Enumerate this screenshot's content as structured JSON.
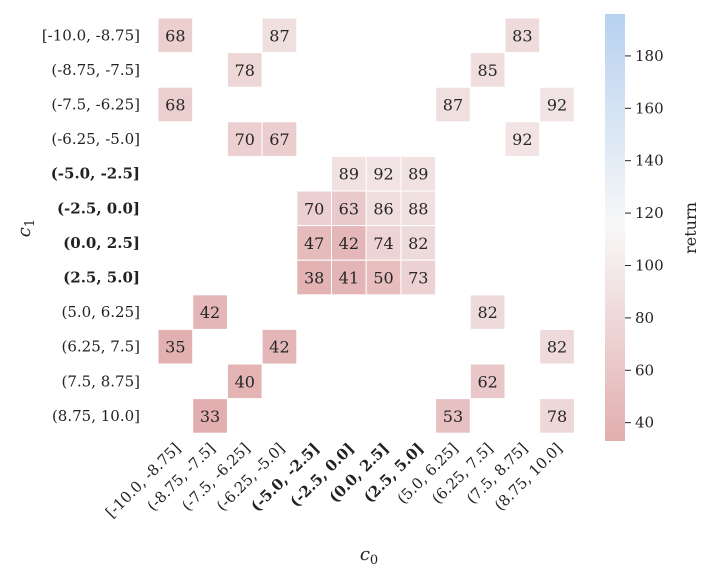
{
  "chart_data": {
    "type": "heatmap",
    "xlabel": "c",
    "xlabel_sub": "0",
    "ylabel": "c",
    "ylabel_sub": "1",
    "colorbar_label": "return",
    "colorbar_range": [
      33,
      196
    ],
    "colorbar_ticks": [
      40,
      60,
      80,
      100,
      120,
      140,
      160,
      180
    ],
    "colors": {
      "low": "#e2aeaf",
      "mid": "#f8f8f8",
      "high": "#b7d1f0"
    },
    "color_mid_value": 115,
    "x_categories": [
      "[-10.0, -8.75]",
      "(-8.75, -7.5]",
      "(-7.5, -6.25]",
      "(-6.25, -5.0]",
      "(-5.0, -2.5]",
      "(-2.5, 0.0]",
      "(0.0, 2.5]",
      "(2.5, 5.0]",
      "(5.0, 6.25]",
      "(6.25, 7.5]",
      "(7.5, 8.75]",
      "(8.75, 10.0]"
    ],
    "y_categories": [
      "[-10.0, -8.75]",
      "(-8.75, -7.5]",
      "(-7.5, -6.25]",
      "(-6.25, -5.0]",
      "(-5.0, -2.5]",
      "(-2.5, 0.0]",
      "(0.0, 2.5]",
      "(2.5, 5.0]",
      "(5.0, 6.25]",
      "(6.25, 7.5]",
      "(7.5, 8.75]",
      "(8.75, 10.0]"
    ],
    "bold_indices": [
      4,
      5,
      6,
      7
    ],
    "values": [
      [
        68,
        null,
        null,
        87,
        null,
        null,
        null,
        null,
        null,
        null,
        83,
        null
      ],
      [
        null,
        null,
        78,
        null,
        null,
        null,
        null,
        null,
        null,
        85,
        null,
        null
      ],
      [
        68,
        null,
        null,
        null,
        null,
        null,
        null,
        null,
        87,
        null,
        null,
        92
      ],
      [
        null,
        null,
        70,
        67,
        null,
        null,
        null,
        null,
        null,
        null,
        92,
        null
      ],
      [
        null,
        null,
        null,
        null,
        null,
        89,
        92,
        89,
        null,
        null,
        null,
        null
      ],
      [
        null,
        null,
        null,
        null,
        70,
        63,
        86,
        88,
        null,
        null,
        null,
        null
      ],
      [
        null,
        null,
        null,
        null,
        47,
        42,
        74,
        82,
        null,
        null,
        null,
        null
      ],
      [
        null,
        null,
        null,
        null,
        38,
        41,
        50,
        73,
        null,
        null,
        null,
        null
      ],
      [
        null,
        42,
        null,
        null,
        null,
        null,
        null,
        null,
        null,
        82,
        null,
        null
      ],
      [
        35,
        null,
        null,
        42,
        null,
        null,
        null,
        null,
        null,
        null,
        null,
        82
      ],
      [
        null,
        null,
        40,
        null,
        null,
        null,
        null,
        null,
        null,
        62,
        null,
        null
      ],
      [
        null,
        33,
        null,
        null,
        null,
        null,
        null,
        null,
        53,
        null,
        null,
        78
      ]
    ]
  }
}
